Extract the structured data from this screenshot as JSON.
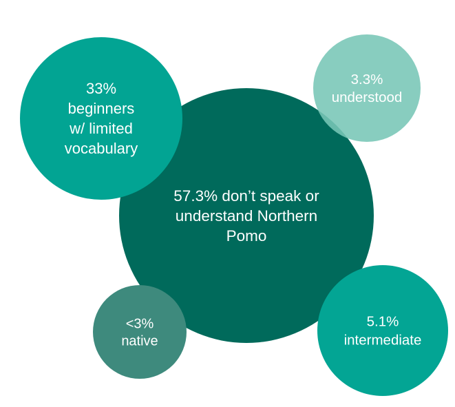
{
  "chart_data": {
    "type": "bubble",
    "title": "",
    "bubbles": [
      {
        "id": "main",
        "label_lines": [
          "57.3% don’t speak or",
          "understand Northern",
          "Pomo"
        ],
        "value": 57.3,
        "color": "#006a5b"
      },
      {
        "id": "beginners",
        "label_lines": [
          "33%",
          "beginners",
          "w/ limited",
          "vocabulary"
        ],
        "value": 33,
        "color": "#02a493"
      },
      {
        "id": "understood",
        "label_lines": [
          "3.3%",
          "understood"
        ],
        "value": 3.3,
        "color": "#78c6b6"
      },
      {
        "id": "native",
        "label_lines": [
          "<3%",
          "native"
        ],
        "value": 3,
        "color": "#3e8a7d"
      },
      {
        "id": "intermediate",
        "label_lines": [
          "5.1%",
          "intermediate"
        ],
        "value": 5.1,
        "color": "#03a594"
      }
    ]
  }
}
